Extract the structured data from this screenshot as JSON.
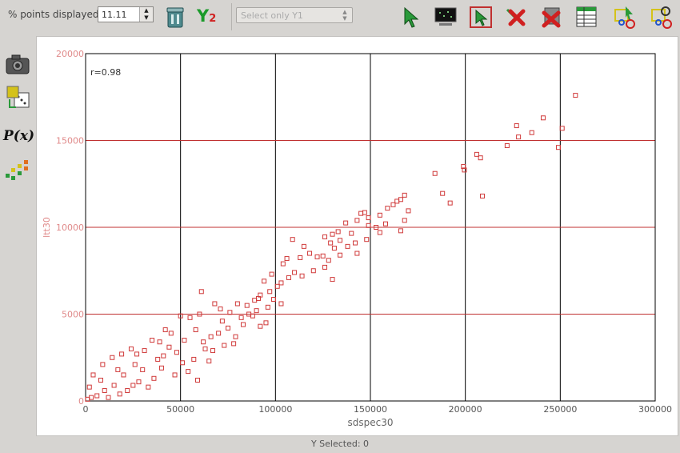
{
  "toolbar": {
    "points_label": "% points displayed",
    "points_value": "11.11",
    "y2_label": "Y",
    "y2_sub": "2",
    "select_placeholder": "Select only Y1"
  },
  "icons": {
    "toolbar": [
      "trash-bin-icon",
      "y2-axis-icon",
      "pointer-icon",
      "monitor-icon",
      "select-pointer-icon",
      "deselect-icon",
      "delete-icon",
      "table-icon",
      "select-group-icon",
      "zoom-group-icon"
    ],
    "left_rail": [
      "camera-icon",
      "dice-icon",
      "function-icon",
      "points-grid-icon"
    ]
  },
  "left_rail": {
    "function_label": "P(x)"
  },
  "status": {
    "text": "Y Selected: 0"
  },
  "colors": {
    "accent": "#d03a3a",
    "axis_text": "#e08a8a",
    "grid_red": "#c03030",
    "grid_black": "#000000"
  },
  "chart_data": {
    "type": "scatter",
    "xlabel": "sdspec30",
    "ylabel": "ltt30",
    "annotation": "r=0.98",
    "xlim": [
      0,
      300000
    ],
    "ylim": [
      0,
      20000
    ],
    "xticks": [
      0,
      50000,
      100000,
      150000,
      200000,
      250000,
      300000
    ],
    "yticks": [
      0,
      5000,
      10000,
      15000,
      20000
    ],
    "grid": true,
    "legend": "none",
    "points": [
      [
        258000,
        17600
      ],
      [
        241000,
        16300
      ],
      [
        227000,
        15850
      ],
      [
        235000,
        15450
      ],
      [
        251000,
        15700
      ],
      [
        228000,
        15200
      ],
      [
        222000,
        14700
      ],
      [
        249000,
        14600
      ],
      [
        206000,
        14200
      ],
      [
        208000,
        14000
      ],
      [
        199000,
        13500
      ],
      [
        199500,
        13300
      ],
      [
        184000,
        13100
      ],
      [
        209000,
        11800
      ],
      [
        188000,
        11950
      ],
      [
        192000,
        11400
      ],
      [
        168000,
        11850
      ],
      [
        166000,
        11600
      ],
      [
        164000,
        11500
      ],
      [
        162000,
        11300
      ],
      [
        159000,
        11100
      ],
      [
        170000,
        10950
      ],
      [
        168000,
        10400
      ],
      [
        155000,
        10700
      ],
      [
        147000,
        10850
      ],
      [
        145000,
        10800
      ],
      [
        149000,
        10550
      ],
      [
        143000,
        10400
      ],
      [
        137000,
        10250
      ],
      [
        149000,
        10100
      ],
      [
        158000,
        10200
      ],
      [
        153000,
        10000
      ],
      [
        155000,
        9700
      ],
      [
        166000,
        9800
      ],
      [
        133000,
        9750
      ],
      [
        140000,
        9650
      ],
      [
        130000,
        9600
      ],
      [
        126000,
        9450
      ],
      [
        134000,
        9250
      ],
      [
        148000,
        9300
      ],
      [
        142000,
        9100
      ],
      [
        129000,
        9100
      ],
      [
        138000,
        8900
      ],
      [
        131000,
        8800
      ],
      [
        143000,
        8500
      ],
      [
        134000,
        8400
      ],
      [
        109000,
        9300
      ],
      [
        115000,
        8900
      ],
      [
        118000,
        8500
      ],
      [
        122000,
        8300
      ],
      [
        125000,
        8350
      ],
      [
        128000,
        8100
      ],
      [
        113000,
        8250
      ],
      [
        126000,
        7700
      ],
      [
        120000,
        7500
      ],
      [
        130000,
        7000
      ],
      [
        106000,
        8200
      ],
      [
        104000,
        7900
      ],
      [
        110000,
        7400
      ],
      [
        114000,
        7200
      ],
      [
        107000,
        7100
      ],
      [
        103000,
        6800
      ],
      [
        98000,
        7300
      ],
      [
        101000,
        6600
      ],
      [
        97000,
        6300
      ],
      [
        94000,
        6900
      ],
      [
        92000,
        6100
      ],
      [
        99000,
        5850
      ],
      [
        89000,
        5800
      ],
      [
        103000,
        5600
      ],
      [
        85000,
        5500
      ],
      [
        90000,
        5200
      ],
      [
        96000,
        5400
      ],
      [
        88000,
        4900
      ],
      [
        82000,
        4800
      ],
      [
        83000,
        4400
      ],
      [
        95000,
        4500
      ],
      [
        80000,
        5600
      ],
      [
        92000,
        4300
      ],
      [
        61000,
        6300
      ],
      [
        68000,
        5600
      ],
      [
        71000,
        5300
      ],
      [
        50000,
        4900
      ],
      [
        55000,
        4800
      ],
      [
        42000,
        4100
      ],
      [
        45000,
        3900
      ],
      [
        58000,
        4100
      ],
      [
        62000,
        3400
      ],
      [
        63000,
        3000
      ],
      [
        66000,
        3700
      ],
      [
        70000,
        3900
      ],
      [
        75000,
        4200
      ],
      [
        78000,
        3300
      ],
      [
        65000,
        2300
      ],
      [
        57000,
        2400
      ],
      [
        48000,
        2800
      ],
      [
        51000,
        2200
      ],
      [
        54000,
        1700
      ],
      [
        47000,
        1500
      ],
      [
        59000,
        1200
      ],
      [
        40000,
        1900
      ],
      [
        38000,
        2400
      ],
      [
        36000,
        1300
      ],
      [
        33000,
        800
      ],
      [
        28000,
        1100
      ],
      [
        30000,
        1800
      ],
      [
        25000,
        900
      ],
      [
        22000,
        600
      ],
      [
        20000,
        1500
      ],
      [
        18000,
        400
      ],
      [
        15000,
        900
      ],
      [
        12000,
        200
      ],
      [
        10000,
        600
      ],
      [
        8000,
        1200
      ],
      [
        6000,
        300
      ],
      [
        3000,
        200
      ],
      [
        1000,
        100
      ],
      [
        2000,
        800
      ],
      [
        4000,
        1500
      ],
      [
        9000,
        2100
      ],
      [
        14000,
        2500
      ],
      [
        19000,
        2700
      ],
      [
        24000,
        3000
      ],
      [
        17000,
        1800
      ],
      [
        26000,
        2100
      ],
      [
        44000,
        3100
      ],
      [
        52000,
        3500
      ],
      [
        60000,
        5000
      ],
      [
        35000,
        3500
      ],
      [
        39000,
        3400
      ],
      [
        31000,
        2900
      ],
      [
        27000,
        2700
      ],
      [
        41000,
        2600
      ],
      [
        67000,
        2900
      ],
      [
        73000,
        3200
      ],
      [
        79000,
        3700
      ],
      [
        86000,
        5000
      ],
      [
        91000,
        5900
      ],
      [
        76000,
        5100
      ],
      [
        72000,
        4600
      ]
    ]
  }
}
